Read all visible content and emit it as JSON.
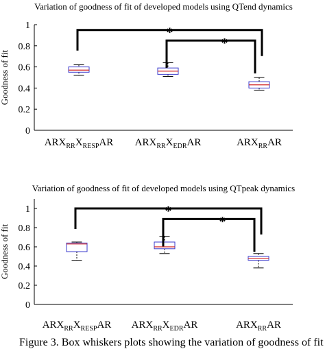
{
  "caption": "Figure 3. Box whiskers plots showing the variation of goodness of fit",
  "chart_data": [
    {
      "type": "box",
      "title": "Variation of goodness of fit of developed models using QTend dynamics",
      "xlabel": "",
      "ylabel": "Goodness of fit",
      "ylim": [
        0,
        1
      ],
      "yticks": [
        "0",
        "0.2",
        "0.4",
        "0.6",
        "0.8",
        "1"
      ],
      "categories": [
        {
          "base": "ARX",
          "sub1": "RR",
          "mid": "X",
          "sub2": "RESP",
          "tail": "AR"
        },
        {
          "base": "ARX",
          "sub1": "RR",
          "mid": "X",
          "sub2": "EDR",
          "tail": "AR"
        },
        {
          "base": "ARX",
          "sub1": "RR",
          "mid": "",
          "sub2": "",
          "tail": "AR"
        }
      ],
      "boxes": [
        {
          "whisker_low": 0.52,
          "q1": 0.55,
          "median": 0.57,
          "q3": 0.6,
          "whisker_high": 0.62
        },
        {
          "whisker_low": 0.51,
          "q1": 0.53,
          "median": 0.56,
          "q3": 0.59,
          "whisker_high": 0.64
        },
        {
          "whisker_low": 0.38,
          "q1": 0.4,
          "median": 0.43,
          "q3": 0.46,
          "whisker_high": 0.5
        }
      ],
      "significance": [
        {
          "from": 0,
          "to": 2,
          "label": "*",
          "level": 0.95
        },
        {
          "from": 1,
          "to": 2,
          "label": "*",
          "level": 0.85
        }
      ]
    },
    {
      "type": "box",
      "title": "Variation of goodness of fit of developed models using QTpeak dynamics",
      "xlabel": "",
      "ylabel": "Goodness of fit",
      "ylim": [
        0,
        1.1
      ],
      "yticks": [
        "0",
        "0.2",
        "0.4",
        "0.6",
        "0.8",
        "1"
      ],
      "categories": [
        {
          "base": "ARX",
          "sub1": "RR",
          "mid": "X",
          "sub2": "RESP",
          "tail": "AR"
        },
        {
          "base": "ARX",
          "sub1": "RR",
          "mid": "X",
          "sub2": "EDR",
          "tail": "AR"
        },
        {
          "base": "ARX",
          "sub1": "RR",
          "mid": "",
          "sub2": "",
          "tail": "AR"
        }
      ],
      "boxes": [
        {
          "whisker_low": 0.46,
          "q1": 0.55,
          "median": 0.63,
          "q3": 0.64,
          "whisker_high": 0.65
        },
        {
          "whisker_low": 0.53,
          "q1": 0.58,
          "median": 0.6,
          "q3": 0.65,
          "whisker_high": 0.71
        },
        {
          "whisker_low": 0.38,
          "q1": 0.46,
          "median": 0.48,
          "q3": 0.5,
          "whisker_high": 0.53
        }
      ],
      "significance": [
        {
          "from": 0,
          "to": 2,
          "label": "*",
          "level": 1.0
        },
        {
          "from": 1,
          "to": 2,
          "label": "*",
          "level": 0.89
        }
      ]
    }
  ]
}
